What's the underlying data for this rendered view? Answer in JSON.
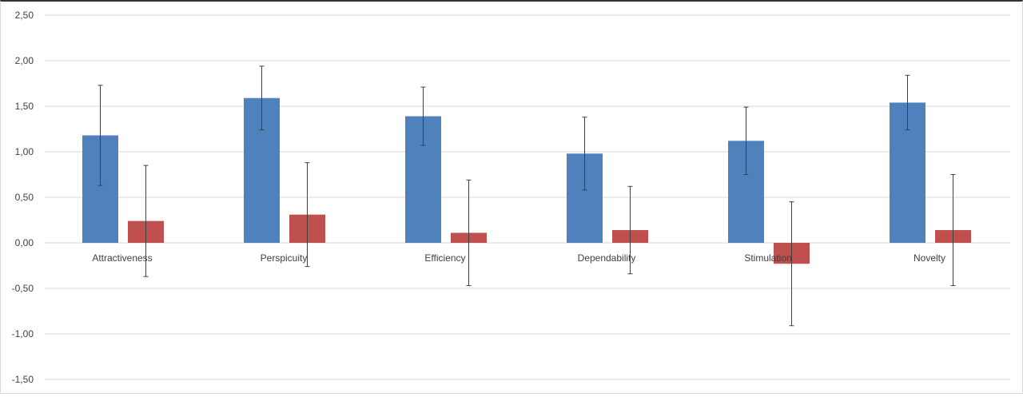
{
  "chart_data": {
    "type": "bar",
    "categories": [
      "Attractiveness",
      "Perspicuity",
      "Efficiency",
      "Dependability",
      "Stimulation",
      "Novelty"
    ],
    "series": [
      {
        "values": [
          1.18,
          1.59,
          1.39,
          0.98,
          1.12,
          1.54
        ],
        "errors": [
          0.55,
          0.35,
          0.32,
          0.4,
          0.37,
          0.3
        ],
        "color": "#4f81bd"
      },
      {
        "values": [
          0.24,
          0.31,
          0.11,
          0.14,
          -0.23,
          0.14
        ],
        "errors": [
          0.61,
          0.57,
          0.58,
          0.48,
          0.68,
          0.61
        ],
        "color": "#c0504d"
      }
    ],
    "yticks": [
      "2,50",
      "2,00",
      "1,50",
      "1,00",
      "0,50",
      "0,00",
      "-0,50",
      "-1,00",
      "-1,50"
    ],
    "ylim": [
      -1.5,
      2.5
    ],
    "grid": true,
    "legend": "none"
  }
}
